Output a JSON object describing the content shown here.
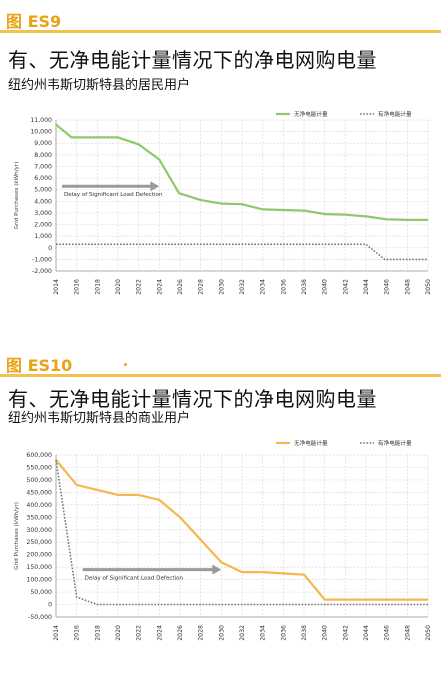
{
  "figures": [
    {
      "tag": "图 ES9",
      "title": "有、无净电能计量情况下的净电网购电量",
      "subtitle": "纽约州韦斯切斯特县的居民用户"
    },
    {
      "tag": "图 ES10",
      "title": "有、无净电能计量情况下的净电网购电量",
      "subtitle": "纽约州韦斯切斯特县的商业用户"
    }
  ],
  "colors": {
    "accent": "#E8A317",
    "rule": "#F2C14E",
    "green": "#8DC96A",
    "orange": "#F5B74E",
    "dotted": "#777777",
    "grid": "#DADADA"
  },
  "chart_data": [
    {
      "type": "line",
      "ylabel": "Grid Purchases (kWh/yr)",
      "x": [
        2014,
        2016,
        2018,
        2020,
        2022,
        2024,
        2026,
        2028,
        2030,
        2032,
        2034,
        2036,
        2038,
        2040,
        2042,
        2044,
        2046,
        2048,
        2050
      ],
      "xticks": [
        "2014",
        "2016",
        "2018",
        "2020",
        "2022",
        "2024",
        "2026",
        "2028",
        "2030",
        "2032",
        "2034",
        "2036",
        "2038",
        "2040",
        "2042",
        "2044",
        "2046",
        "2048",
        "2050"
      ],
      "ylim": [
        -2000,
        11000
      ],
      "yticks": [
        -2000,
        -1000,
        0,
        1000,
        2000,
        3000,
        4000,
        5000,
        6000,
        7000,
        8000,
        9000,
        10000,
        11000
      ],
      "ytick_labels": [
        "-2,000",
        "-1,000",
        "0",
        "1,000",
        "2,000",
        "3,000",
        "4,000",
        "5,000",
        "6,000",
        "7,000",
        "8,000",
        "9,000",
        "10,000",
        "11,000"
      ],
      "series": [
        {
          "name": "无净电能计量",
          "style": "solid",
          "color": "#8DC96A",
          "points": [
            [
              2014,
              10600
            ],
            [
              2015.5,
              9500
            ],
            [
              2018,
              9500
            ],
            [
              2020,
              9500
            ],
            [
              2022,
              8900
            ],
            [
              2024,
              7600
            ],
            [
              2025.9,
              4700
            ],
            [
              2028,
              4100
            ],
            [
              2030,
              3800
            ],
            [
              2032,
              3750
            ],
            [
              2034,
              3300
            ],
            [
              2036,
              3250
            ],
            [
              2038,
              3200
            ],
            [
              2040,
              2900
            ],
            [
              2042,
              2850
            ],
            [
              2044,
              2700
            ],
            [
              2046,
              2450
            ],
            [
              2048,
              2400
            ],
            [
              2050,
              2400
            ]
          ]
        },
        {
          "name": "有净电能计量",
          "style": "dotted",
          "color": "#777777",
          "points": [
            [
              2014,
              300
            ],
            [
              2044,
              300
            ],
            [
              2045.8,
              -1000
            ],
            [
              2050,
              -1000
            ]
          ]
        }
      ],
      "annotation": {
        "text": "Delay of Significant Load Defection",
        "from": [
          2014,
          5300
        ],
        "to": [
          2024,
          5300
        ]
      },
      "legend": "top-right",
      "grid": true
    },
    {
      "type": "line",
      "ylabel": "Grid Purchases (kWh/yr)",
      "x": [
        2014,
        2016,
        2018,
        2020,
        2022,
        2024,
        2026,
        2028,
        2030,
        2032,
        2034,
        2036,
        2038,
        2040,
        2042,
        2044,
        2046,
        2048,
        2050
      ],
      "xticks": [
        "2014",
        "2016",
        "2018",
        "2020",
        "2022",
        "2024",
        "2026",
        "2028",
        "2030",
        "2032",
        "2034",
        "2036",
        "2038",
        "2040",
        "2042",
        "2044",
        "2046",
        "2048",
        "2050"
      ],
      "ylim": [
        -50000,
        600000
      ],
      "yticks": [
        -50000,
        0,
        50000,
        100000,
        150000,
        200000,
        250000,
        300000,
        350000,
        400000,
        450000,
        500000,
        550000,
        600000
      ],
      "ytick_labels": [
        "-50,000",
        "0",
        "50,000",
        "100,000",
        "150,000",
        "200,000",
        "250,000",
        "300,000",
        "350,000",
        "400,000",
        "450,000",
        "500,000",
        "550,000",
        "600,000"
      ],
      "series": [
        {
          "name": "无净电能计量",
          "style": "solid",
          "color": "#F5B74E",
          "points": [
            [
              2014,
              580000
            ],
            [
              2016,
              480000
            ],
            [
              2018,
              460000
            ],
            [
              2020,
              440000
            ],
            [
              2022,
              440000
            ],
            [
              2024,
              420000
            ],
            [
              2026,
              350000
            ],
            [
              2028,
              260000
            ],
            [
              2030,
              170000
            ],
            [
              2032,
              130000
            ],
            [
              2034,
              130000
            ],
            [
              2036,
              125000
            ],
            [
              2038,
              120000
            ],
            [
              2040,
              20000
            ],
            [
              2042,
              20000
            ],
            [
              2044,
              20000
            ],
            [
              2046,
              20000
            ],
            [
              2048,
              20000
            ],
            [
              2050,
              20000
            ]
          ]
        },
        {
          "name": "有净电能计量",
          "style": "dotted",
          "color": "#777777",
          "points": [
            [
              2014,
              580000
            ],
            [
              2016,
              30000
            ],
            [
              2018,
              0
            ],
            [
              2050,
              0
            ]
          ]
        }
      ],
      "annotation": {
        "text": "Delay of Significant Load Defection",
        "from": [
          2016,
          140000
        ],
        "to": [
          2030,
          140000
        ]
      },
      "legend": "top-right",
      "grid": true
    }
  ]
}
